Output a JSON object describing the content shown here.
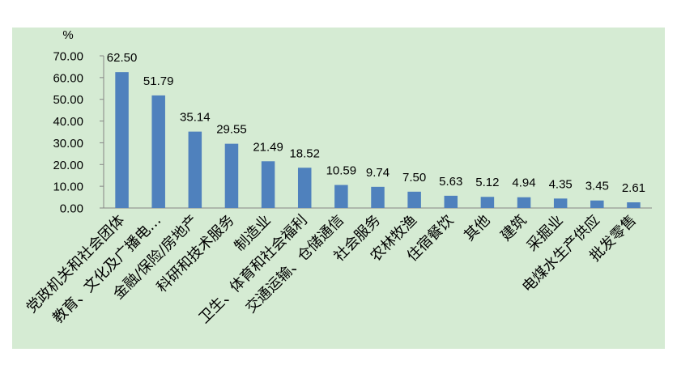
{
  "chart_data": {
    "type": "bar",
    "title": "",
    "xlabel": "",
    "ylabel": "%",
    "ylim": [
      0,
      70
    ],
    "yticks": [
      "0.00",
      "10.00",
      "20.00",
      "30.00",
      "40.00",
      "50.00",
      "60.00",
      "70.00"
    ],
    "grid": false,
    "legend": "none",
    "colors": {
      "background": "#d5ebd3",
      "bar": "#4f81bd",
      "text": "#000000"
    },
    "categories": [
      "党政机关和社会团体",
      "教育、文化及广播电…",
      "金融/保险/房地产",
      "科研和技术服务",
      "制造业",
      "卫生、体育和社会福利",
      "交通运输、仓储通信",
      "社会服务",
      "农林牧渔",
      "住宿餐饮",
      "其他",
      "建筑",
      "采掘业",
      "电煤水生产供应",
      "批发零售"
    ],
    "values": [
      62.5,
      51.79,
      35.14,
      29.55,
      21.49,
      18.52,
      10.59,
      9.74,
      7.5,
      5.63,
      5.12,
      4.94,
      4.35,
      3.45,
      2.61
    ],
    "value_labels": [
      "62.50",
      "51.79",
      "35.14",
      "29.55",
      "21.49",
      "18.52",
      "10.59",
      "9.74",
      "7.50",
      "5.63",
      "5.12",
      "4.94",
      "4.35",
      "3.45",
      "2.61"
    ]
  }
}
